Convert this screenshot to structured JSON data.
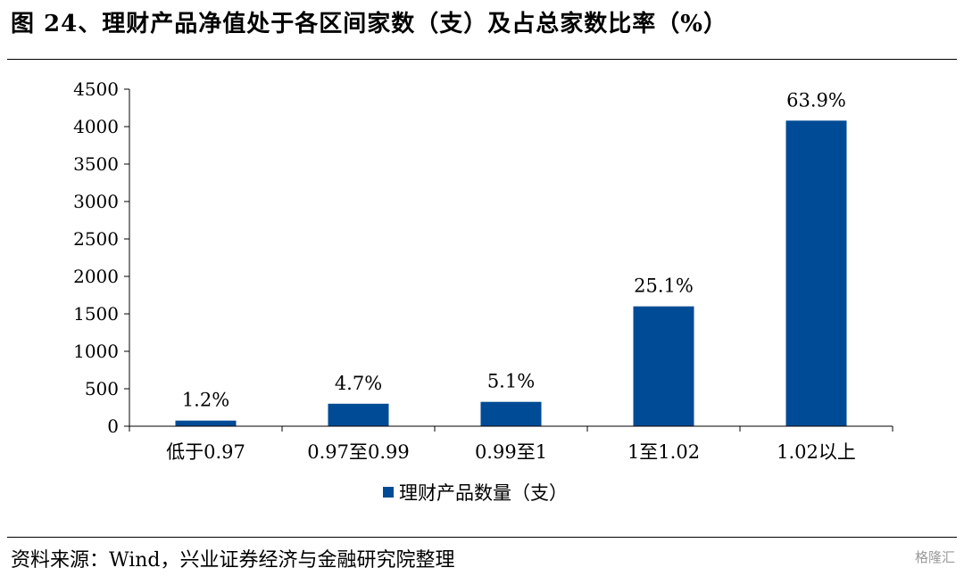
{
  "title": "图 24、理财产品净值处于各区间家数（支）及占总家数比率（%）",
  "source": "资料来源：Wind，兴业证券经济与金融研究院整理",
  "watermark": "格隆汇",
  "chart_data": {
    "type": "bar",
    "categories": [
      "低于0.97",
      "0.97至0.99",
      "0.99至1",
      "1至1.02",
      "1.02以上"
    ],
    "series": [
      {
        "name": "理财产品数量（支）",
        "values": [
          75,
          300,
          325,
          1600,
          4080
        ],
        "data_labels": [
          "1.2%",
          "4.7%",
          "5.1%",
          "25.1%",
          "63.9%"
        ],
        "color": "#004B96"
      }
    ],
    "ylim": [
      0,
      4500
    ],
    "yticks": [
      "0",
      "500",
      "1000",
      "1500",
      "2000",
      "2500",
      "3000",
      "3500",
      "4000",
      "4500"
    ],
    "grid": false,
    "legend_position": "bottom"
  }
}
